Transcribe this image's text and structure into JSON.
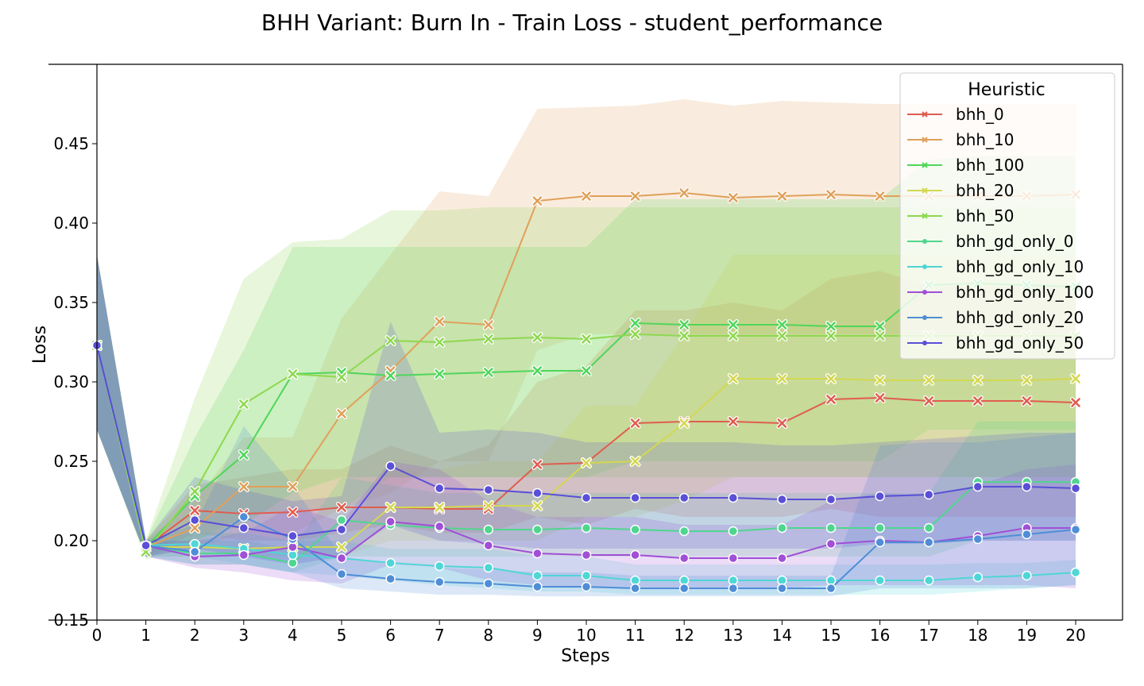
{
  "chart_data": {
    "type": "line",
    "title": "BHH Variant: Burn In - Train Loss - student_performance",
    "xlabel": "Steps",
    "ylabel": "Loss",
    "xlim": [
      0,
      21
    ],
    "ylim": [
      0.15,
      0.5
    ],
    "x": [
      0,
      1,
      2,
      3,
      4,
      5,
      6,
      7,
      8,
      9,
      10,
      11,
      12,
      13,
      14,
      15,
      16,
      17,
      18,
      19,
      20
    ],
    "xticks": [
      "0",
      "1",
      "2",
      "3",
      "4",
      "5",
      "6",
      "7",
      "8",
      "9",
      "10",
      "11",
      "12",
      "13",
      "14",
      "15",
      "16",
      "17",
      "18",
      "19",
      "20"
    ],
    "yticks": [
      "0.15",
      "0.20",
      "0.25",
      "0.30",
      "0.35",
      "0.40",
      "0.45"
    ],
    "ytick_values": [
      0.15,
      0.2,
      0.25,
      0.3,
      0.35,
      0.4,
      0.45
    ],
    "grid": false,
    "legend": {
      "title": "Heuristic",
      "placement": "upper-right"
    },
    "series": [
      {
        "name": "bhh_0",
        "color": "#e05d4f",
        "marker": "x",
        "values": [
          0.323,
          0.196,
          0.219,
          0.217,
          0.218,
          0.221,
          0.221,
          0.22,
          0.22,
          0.248,
          0.249,
          0.274,
          0.275,
          0.275,
          0.274,
          0.289,
          0.29,
          0.288,
          0.288,
          0.288,
          0.287
        ],
        "lower": [
          0.27,
          0.19,
          0.205,
          0.2,
          0.2,
          0.205,
          0.21,
          0.205,
          0.205,
          0.215,
          0.21,
          0.22,
          0.215,
          0.215,
          0.215,
          0.22,
          0.215,
          0.215,
          0.215,
          0.215,
          0.215
        ],
        "upper": [
          0.38,
          0.2,
          0.235,
          0.24,
          0.245,
          0.245,
          0.26,
          0.25,
          0.26,
          0.3,
          0.31,
          0.345,
          0.345,
          0.35,
          0.345,
          0.365,
          0.37,
          0.36,
          0.36,
          0.36,
          0.36
        ]
      },
      {
        "name": "bhh_10",
        "color": "#e0a05a",
        "marker": "x",
        "values": [
          0.323,
          0.196,
          0.208,
          0.234,
          0.234,
          0.28,
          0.307,
          0.338,
          0.336,
          0.414,
          0.417,
          0.417,
          0.419,
          0.416,
          0.417,
          0.418,
          0.417,
          0.417,
          0.417,
          0.417,
          0.418
        ],
        "lower": [
          0.27,
          0.19,
          0.195,
          0.205,
          0.205,
          0.22,
          0.23,
          0.25,
          0.25,
          0.32,
          0.33,
          0.33,
          0.33,
          0.33,
          0.33,
          0.33,
          0.33,
          0.33,
          0.33,
          0.33,
          0.33
        ],
        "upper": [
          0.38,
          0.2,
          0.225,
          0.265,
          0.265,
          0.34,
          0.38,
          0.42,
          0.417,
          0.472,
          0.473,
          0.474,
          0.478,
          0.474,
          0.477,
          0.476,
          0.475,
          0.475,
          0.475,
          0.475,
          0.475
        ]
      },
      {
        "name": "bhh_100",
        "color": "#4fd65a",
        "marker": "x",
        "values": [
          0.323,
          0.196,
          0.228,
          0.254,
          0.305,
          0.306,
          0.304,
          0.305,
          0.306,
          0.307,
          0.307,
          0.337,
          0.336,
          0.336,
          0.336,
          0.335,
          0.335,
          0.361,
          0.362,
          0.361,
          0.36
        ],
        "lower": [
          0.27,
          0.19,
          0.2,
          0.21,
          0.23,
          0.24,
          0.24,
          0.24,
          0.24,
          0.24,
          0.24,
          0.25,
          0.25,
          0.25,
          0.25,
          0.25,
          0.25,
          0.27,
          0.27,
          0.27,
          0.27
        ],
        "upper": [
          0.38,
          0.2,
          0.265,
          0.32,
          0.385,
          0.385,
          0.385,
          0.385,
          0.385,
          0.385,
          0.385,
          0.415,
          0.415,
          0.415,
          0.415,
          0.415,
          0.415,
          0.44,
          0.442,
          0.442,
          0.442
        ]
      },
      {
        "name": "bhh_20",
        "color": "#d4d84f",
        "marker": "x",
        "values": [
          0.323,
          0.196,
          0.196,
          0.195,
          0.196,
          0.196,
          0.221,
          0.221,
          0.222,
          0.222,
          0.249,
          0.25,
          0.274,
          0.302,
          0.302,
          0.302,
          0.301,
          0.301,
          0.301,
          0.301,
          0.302
        ],
        "lower": [
          0.27,
          0.19,
          0.19,
          0.19,
          0.19,
          0.19,
          0.2,
          0.2,
          0.2,
          0.2,
          0.215,
          0.215,
          0.225,
          0.24,
          0.24,
          0.24,
          0.24,
          0.24,
          0.24,
          0.24,
          0.24
        ],
        "upper": [
          0.38,
          0.2,
          0.205,
          0.205,
          0.205,
          0.205,
          0.245,
          0.245,
          0.25,
          0.25,
          0.285,
          0.285,
          0.33,
          0.38,
          0.38,
          0.38,
          0.38,
          0.38,
          0.38,
          0.38,
          0.38
        ]
      },
      {
        "name": "bhh_50",
        "color": "#8ed84f",
        "marker": "x",
        "values": [
          0.323,
          0.193,
          0.231,
          0.286,
          0.305,
          0.303,
          0.326,
          0.325,
          0.327,
          0.328,
          0.327,
          0.33,
          0.329,
          0.329,
          0.329,
          0.329,
          0.329,
          0.329,
          0.329,
          0.329,
          0.329
        ],
        "lower": [
          0.27,
          0.188,
          0.2,
          0.215,
          0.22,
          0.22,
          0.24,
          0.24,
          0.24,
          0.24,
          0.24,
          0.24,
          0.24,
          0.24,
          0.24,
          0.24,
          0.24,
          0.24,
          0.24,
          0.24,
          0.24
        ],
        "upper": [
          0.38,
          0.2,
          0.29,
          0.365,
          0.388,
          0.39,
          0.408,
          0.408,
          0.41,
          0.41,
          0.41,
          0.41,
          0.41,
          0.41,
          0.41,
          0.41,
          0.41,
          0.41,
          0.41,
          0.41,
          0.41
        ]
      },
      {
        "name": "bhh_gd_only_0",
        "color": "#4fd68e",
        "marker": "o",
        "values": [
          0.323,
          0.197,
          0.192,
          0.192,
          0.186,
          0.213,
          0.21,
          0.208,
          0.207,
          0.207,
          0.208,
          0.207,
          0.206,
          0.206,
          0.208,
          0.208,
          0.208,
          0.208,
          0.237,
          0.237,
          0.237
        ],
        "lower": [
          0.27,
          0.19,
          0.185,
          0.185,
          0.18,
          0.19,
          0.19,
          0.19,
          0.19,
          0.19,
          0.19,
          0.19,
          0.19,
          0.19,
          0.19,
          0.19,
          0.19,
          0.19,
          0.2,
          0.2,
          0.2
        ],
        "upper": [
          0.38,
          0.2,
          0.2,
          0.2,
          0.195,
          0.24,
          0.235,
          0.23,
          0.23,
          0.23,
          0.23,
          0.23,
          0.23,
          0.23,
          0.23,
          0.23,
          0.23,
          0.23,
          0.275,
          0.275,
          0.275
        ]
      },
      {
        "name": "bhh_gd_only_10",
        "color": "#4fd6d6",
        "marker": "o",
        "values": [
          0.323,
          0.197,
          0.198,
          0.195,
          0.191,
          0.189,
          0.186,
          0.184,
          0.183,
          0.178,
          0.178,
          0.175,
          0.175,
          0.175,
          0.175,
          0.175,
          0.175,
          0.175,
          0.177,
          0.178,
          0.18
        ],
        "lower": [
          0.27,
          0.19,
          0.19,
          0.185,
          0.18,
          0.178,
          0.175,
          0.172,
          0.17,
          0.168,
          0.168,
          0.166,
          0.166,
          0.166,
          0.166,
          0.166,
          0.166,
          0.166,
          0.168,
          0.17,
          0.172
        ],
        "upper": [
          0.38,
          0.2,
          0.205,
          0.205,
          0.2,
          0.2,
          0.195,
          0.195,
          0.195,
          0.19,
          0.19,
          0.185,
          0.185,
          0.185,
          0.185,
          0.185,
          0.185,
          0.185,
          0.186,
          0.186,
          0.188
        ]
      },
      {
        "name": "bhh_gd_only_100",
        "color": "#a04fd6",
        "marker": "o",
        "values": [
          0.323,
          0.197,
          0.19,
          0.191,
          0.196,
          0.189,
          0.212,
          0.209,
          0.197,
          0.192,
          0.191,
          0.191,
          0.189,
          0.189,
          0.189,
          0.198,
          0.2,
          0.199,
          0.203,
          0.208,
          0.208
        ],
        "lower": [
          0.27,
          0.19,
          0.183,
          0.18,
          0.175,
          0.173,
          0.185,
          0.183,
          0.175,
          0.172,
          0.17,
          0.17,
          0.17,
          0.17,
          0.17,
          0.172,
          0.172,
          0.172,
          0.172,
          0.172,
          0.17
        ],
        "upper": [
          0.38,
          0.2,
          0.2,
          0.205,
          0.222,
          0.212,
          0.25,
          0.245,
          0.225,
          0.215,
          0.215,
          0.215,
          0.21,
          0.21,
          0.21,
          0.225,
          0.23,
          0.228,
          0.235,
          0.245,
          0.248
        ]
      },
      {
        "name": "bhh_gd_only_20",
        "color": "#4f8ed6",
        "marker": "o",
        "values": [
          0.323,
          0.197,
          0.193,
          0.215,
          0.201,
          0.179,
          0.176,
          0.174,
          0.173,
          0.171,
          0.171,
          0.17,
          0.17,
          0.17,
          0.17,
          0.17,
          0.199,
          0.199,
          0.201,
          0.204,
          0.207
        ],
        "lower": [
          0.27,
          0.19,
          0.185,
          0.185,
          0.18,
          0.17,
          0.168,
          0.166,
          0.166,
          0.165,
          0.165,
          0.165,
          0.165,
          0.165,
          0.165,
          0.165,
          0.17,
          0.17,
          0.17,
          0.17,
          0.172
        ],
        "upper": [
          0.38,
          0.2,
          0.21,
          0.272,
          0.235,
          0.19,
          0.185,
          0.183,
          0.182,
          0.18,
          0.18,
          0.178,
          0.178,
          0.178,
          0.178,
          0.178,
          0.26,
          0.262,
          0.262,
          0.265,
          0.268
        ]
      },
      {
        "name": "bhh_gd_only_50",
        "color": "#5a4fd6",
        "marker": "o",
        "values": [
          0.323,
          0.197,
          0.213,
          0.208,
          0.203,
          0.207,
          0.247,
          0.233,
          0.232,
          0.23,
          0.227,
          0.227,
          0.227,
          0.227,
          0.226,
          0.226,
          0.228,
          0.229,
          0.234,
          0.234,
          0.233
        ],
        "lower": [
          0.27,
          0.19,
          0.195,
          0.19,
          0.185,
          0.19,
          0.21,
          0.2,
          0.198,
          0.195,
          0.195,
          0.195,
          0.195,
          0.195,
          0.195,
          0.195,
          0.198,
          0.198,
          0.2,
          0.2,
          0.2
        ],
        "upper": [
          0.38,
          0.2,
          0.24,
          0.232,
          0.225,
          0.228,
          0.338,
          0.268,
          0.27,
          0.268,
          0.262,
          0.262,
          0.262,
          0.262,
          0.26,
          0.26,
          0.262,
          0.264,
          0.266,
          0.268,
          0.268
        ]
      }
    ]
  }
}
